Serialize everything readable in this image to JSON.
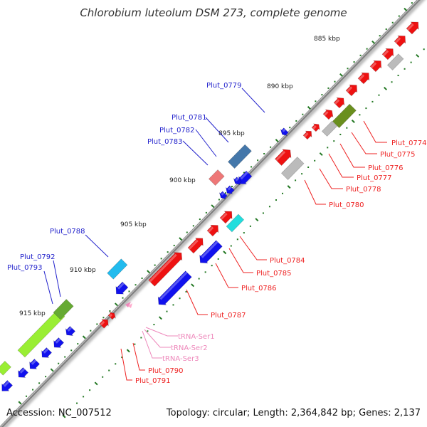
{
  "title": "Chlorobium luteolum DSM 273, complete genome",
  "footer": {
    "accession": "Accession: NC_007512",
    "summary": "Topology: circular; Length: 2,364,842 bp; Genes: 2,137"
  },
  "colors": {
    "backbone": "#777777",
    "tick": "#227722",
    "cds_forward": "#ee1111",
    "cds_reverse": "#1111ee",
    "trna": "#ee88bb"
  },
  "kbp_labels": [
    "885 kbp",
    "890 kbp",
    "895 kbp",
    "900 kbp",
    "905 kbp",
    "910 kbp",
    "915 kbp"
  ],
  "genes": [
    {
      "name": "Plut_0774",
      "color": "#ee2222"
    },
    {
      "name": "Plut_0775",
      "color": "#ee2222"
    },
    {
      "name": "Plut_0776",
      "color": "#ee2222"
    },
    {
      "name": "Plut_0777",
      "color": "#ee2222"
    },
    {
      "name": "Plut_0778",
      "color": "#ee2222"
    },
    {
      "name": "Plut_0779",
      "color": "#2222cc"
    },
    {
      "name": "Plut_0780",
      "color": "#ee2222"
    },
    {
      "name": "Plut_0781",
      "color": "#2222cc"
    },
    {
      "name": "Plut_0782",
      "color": "#2222cc"
    },
    {
      "name": "Plut_0783",
      "color": "#2222cc"
    },
    {
      "name": "Plut_0784",
      "color": "#ee2222"
    },
    {
      "name": "Plut_0785",
      "color": "#ee2222"
    },
    {
      "name": "Plut_0786",
      "color": "#ee2222"
    },
    {
      "name": "Plut_0787",
      "color": "#ee2222"
    },
    {
      "name": "Plut_0788",
      "color": "#2222cc"
    },
    {
      "name": "Plut_0790",
      "color": "#ee2222"
    },
    {
      "name": "Plut_0791",
      "color": "#ee2222"
    },
    {
      "name": "Plut_0792",
      "color": "#2222cc"
    },
    {
      "name": "Plut_0793",
      "color": "#2222cc"
    },
    {
      "name": "tRNA-Ser1",
      "color": "#ee88bb"
    },
    {
      "name": "tRNA-Ser2",
      "color": "#ee88bb"
    },
    {
      "name": "tRNA-Ser3",
      "color": "#ee88bb"
    }
  ]
}
